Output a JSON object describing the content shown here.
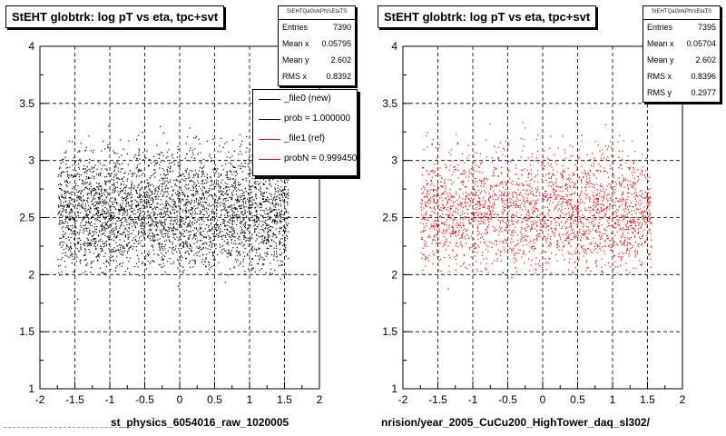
{
  "chart_data": [
    {
      "type": "scatter",
      "title": "StEHT globtrk: log pT vs eta, tpc+svt",
      "xlim": [
        -2,
        2
      ],
      "ylim": [
        1,
        4
      ],
      "x_ticks": [
        "-2",
        "-1.5",
        "-1",
        "-0.5",
        "0",
        "0.5",
        "1",
        "1.5",
        "2"
      ],
      "y_ticks": [
        "1",
        "1.5",
        "2",
        "2.5",
        "3",
        "3.5",
        "4"
      ],
      "grid": true,
      "point_color": "#000000",
      "distribution": {
        "x_range": [
          -1.75,
          1.55
        ],
        "y_center": 2.602,
        "y_rms": 0.3,
        "y_range": [
          2.0,
          3.35
        ],
        "approx_points": 3800
      },
      "stats": {
        "header": "StEHTQaGtrkPtVsEtaTS",
        "rows": [
          {
            "label": "Entries",
            "value": "7390"
          },
          {
            "label": "Mean x",
            "value": "0.05795"
          },
          {
            "label": "Mean y",
            "value": "2.602"
          },
          {
            "label": "RMS x",
            "value": "0.8392"
          }
        ]
      },
      "legend": [
        {
          "label": "_file0 (new)",
          "color": "#000000"
        },
        {
          "label": "prob = 1.000000",
          "color": "#000000"
        },
        {
          "label": "_file1 (ref)",
          "color": "#ff0000"
        },
        {
          "label": "probN = 0.999450",
          "color": "#ff0000"
        }
      ],
      "below_label": "st_physics_6054016_raw_1020005"
    },
    {
      "type": "scatter",
      "title": "StEHT globtrk: log pT vs eta, tpc+svt",
      "xlim": [
        -2,
        2
      ],
      "ylim": [
        1,
        4
      ],
      "x_ticks": [
        "-2",
        "-1.5",
        "-1",
        "-0.5",
        "0",
        "0.5",
        "1",
        "1.5",
        "2"
      ],
      "y_ticks": [
        "1",
        "1.5",
        "2",
        "2.5",
        "3",
        "3.5",
        "4"
      ],
      "grid": true,
      "point_color": "#ff0000",
      "distribution": {
        "x_range": [
          -1.75,
          1.55
        ],
        "y_center": 2.602,
        "y_rms": 0.3,
        "y_range": [
          2.0,
          3.35
        ],
        "approx_points": 2600
      },
      "stats": {
        "header": "StEHTQaGtrkPtVsEtaTS",
        "rows": [
          {
            "label": "Entries",
            "value": "7395"
          },
          {
            "label": "Mean x",
            "value": "0.05704"
          },
          {
            "label": "Mean y",
            "value": "2.602"
          },
          {
            "label": "RMS x",
            "value": "0.8396"
          },
          {
            "label": "RMS y",
            "value": "0.2977"
          }
        ]
      },
      "below_label": "nrision/year_2005_CuCu200_HighTower_daq_sl302/"
    }
  ]
}
